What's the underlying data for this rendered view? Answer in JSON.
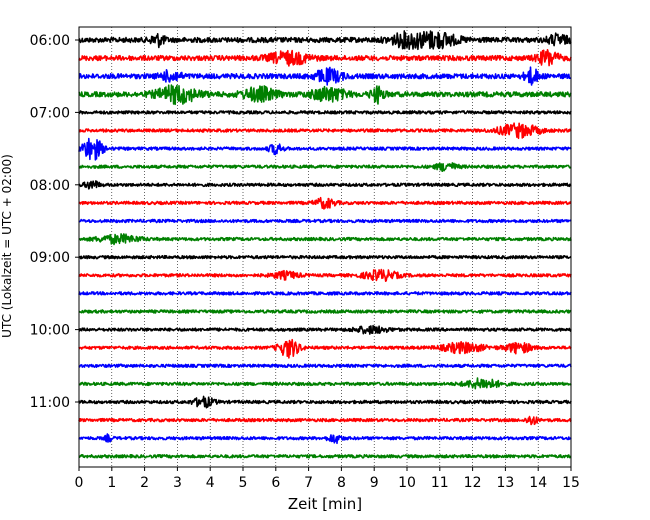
{
  "chart_data": {
    "type": "line",
    "title": "",
    "xlabel": "Zeit  [min]",
    "ylabel": "UTC (Lokalzeit = UTC + 02:00)",
    "xlim": [
      0,
      15
    ],
    "x_ticks": [
      0,
      1,
      2,
      3,
      4,
      5,
      6,
      7,
      8,
      9,
      10,
      11,
      12,
      13,
      14,
      15
    ],
    "y_tick_labels": [
      "06:00",
      "07:00",
      "08:00",
      "09:00",
      "10:00",
      "11:00"
    ],
    "vertical_grid": "dotted",
    "trace_start_minutes_utc": [
      360,
      375,
      390,
      405,
      420,
      435,
      450,
      465,
      480,
      495,
      510,
      525,
      540,
      555,
      570,
      585,
      600,
      615,
      630,
      645,
      660,
      675,
      690,
      705
    ],
    "trace_colors": [
      "#000000",
      "#ff0000",
      "#0000ff",
      "#008000"
    ],
    "events": [
      {
        "trace": 0,
        "x": 2.4,
        "amp": 0.7,
        "dur": 0.2
      },
      {
        "trace": 0,
        "x": 10.0,
        "amp": 0.8,
        "dur": 0.5
      },
      {
        "trace": 0,
        "x": 10.9,
        "amp": 0.9,
        "dur": 0.6
      },
      {
        "trace": 0,
        "x": 14.6,
        "amp": 0.6,
        "dur": 0.3
      },
      {
        "trace": 1,
        "x": 6.4,
        "amp": 0.7,
        "dur": 0.6
      },
      {
        "trace": 1,
        "x": 14.3,
        "amp": 0.9,
        "dur": 0.3
      },
      {
        "trace": 2,
        "x": 2.8,
        "amp": 0.6,
        "dur": 0.3
      },
      {
        "trace": 2,
        "x": 7.6,
        "amp": 0.8,
        "dur": 0.4
      },
      {
        "trace": 2,
        "x": 13.8,
        "amp": 0.9,
        "dur": 0.2
      },
      {
        "trace": 3,
        "x": 3.0,
        "amp": 1.0,
        "dur": 0.6
      },
      {
        "trace": 3,
        "x": 5.5,
        "amp": 0.8,
        "dur": 0.5
      },
      {
        "trace": 3,
        "x": 7.6,
        "amp": 0.8,
        "dur": 0.5
      },
      {
        "trace": 3,
        "x": 9.1,
        "amp": 0.9,
        "dur": 0.2
      },
      {
        "trace": 5,
        "x": 13.4,
        "amp": 0.8,
        "dur": 0.6
      },
      {
        "trace": 6,
        "x": 0.4,
        "amp": 1.4,
        "dur": 0.3
      },
      {
        "trace": 6,
        "x": 6.0,
        "amp": 0.6,
        "dur": 0.2
      },
      {
        "trace": 7,
        "x": 11.2,
        "amp": 0.5,
        "dur": 0.3
      },
      {
        "trace": 8,
        "x": 0.4,
        "amp": 0.5,
        "dur": 0.2
      },
      {
        "trace": 9,
        "x": 7.5,
        "amp": 0.6,
        "dur": 0.3
      },
      {
        "trace": 11,
        "x": 1.2,
        "amp": 0.5,
        "dur": 0.6
      },
      {
        "trace": 13,
        "x": 9.2,
        "amp": 0.6,
        "dur": 0.5
      },
      {
        "trace": 13,
        "x": 6.3,
        "amp": 0.4,
        "dur": 0.4
      },
      {
        "trace": 16,
        "x": 8.9,
        "amp": 0.4,
        "dur": 0.5
      },
      {
        "trace": 17,
        "x": 6.4,
        "amp": 1.1,
        "dur": 0.3
      },
      {
        "trace": 17,
        "x": 11.7,
        "amp": 0.6,
        "dur": 0.6
      },
      {
        "trace": 17,
        "x": 13.4,
        "amp": 0.6,
        "dur": 0.4
      },
      {
        "trace": 19,
        "x": 12.3,
        "amp": 0.6,
        "dur": 0.5
      },
      {
        "trace": 20,
        "x": 3.8,
        "amp": 0.6,
        "dur": 0.3
      },
      {
        "trace": 21,
        "x": 13.8,
        "amp": 0.6,
        "dur": 0.15
      },
      {
        "trace": 22,
        "x": 7.8,
        "amp": 0.5,
        "dur": 0.2
      },
      {
        "trace": 22,
        "x": 0.9,
        "amp": 0.4,
        "dur": 0.1
      }
    ]
  }
}
